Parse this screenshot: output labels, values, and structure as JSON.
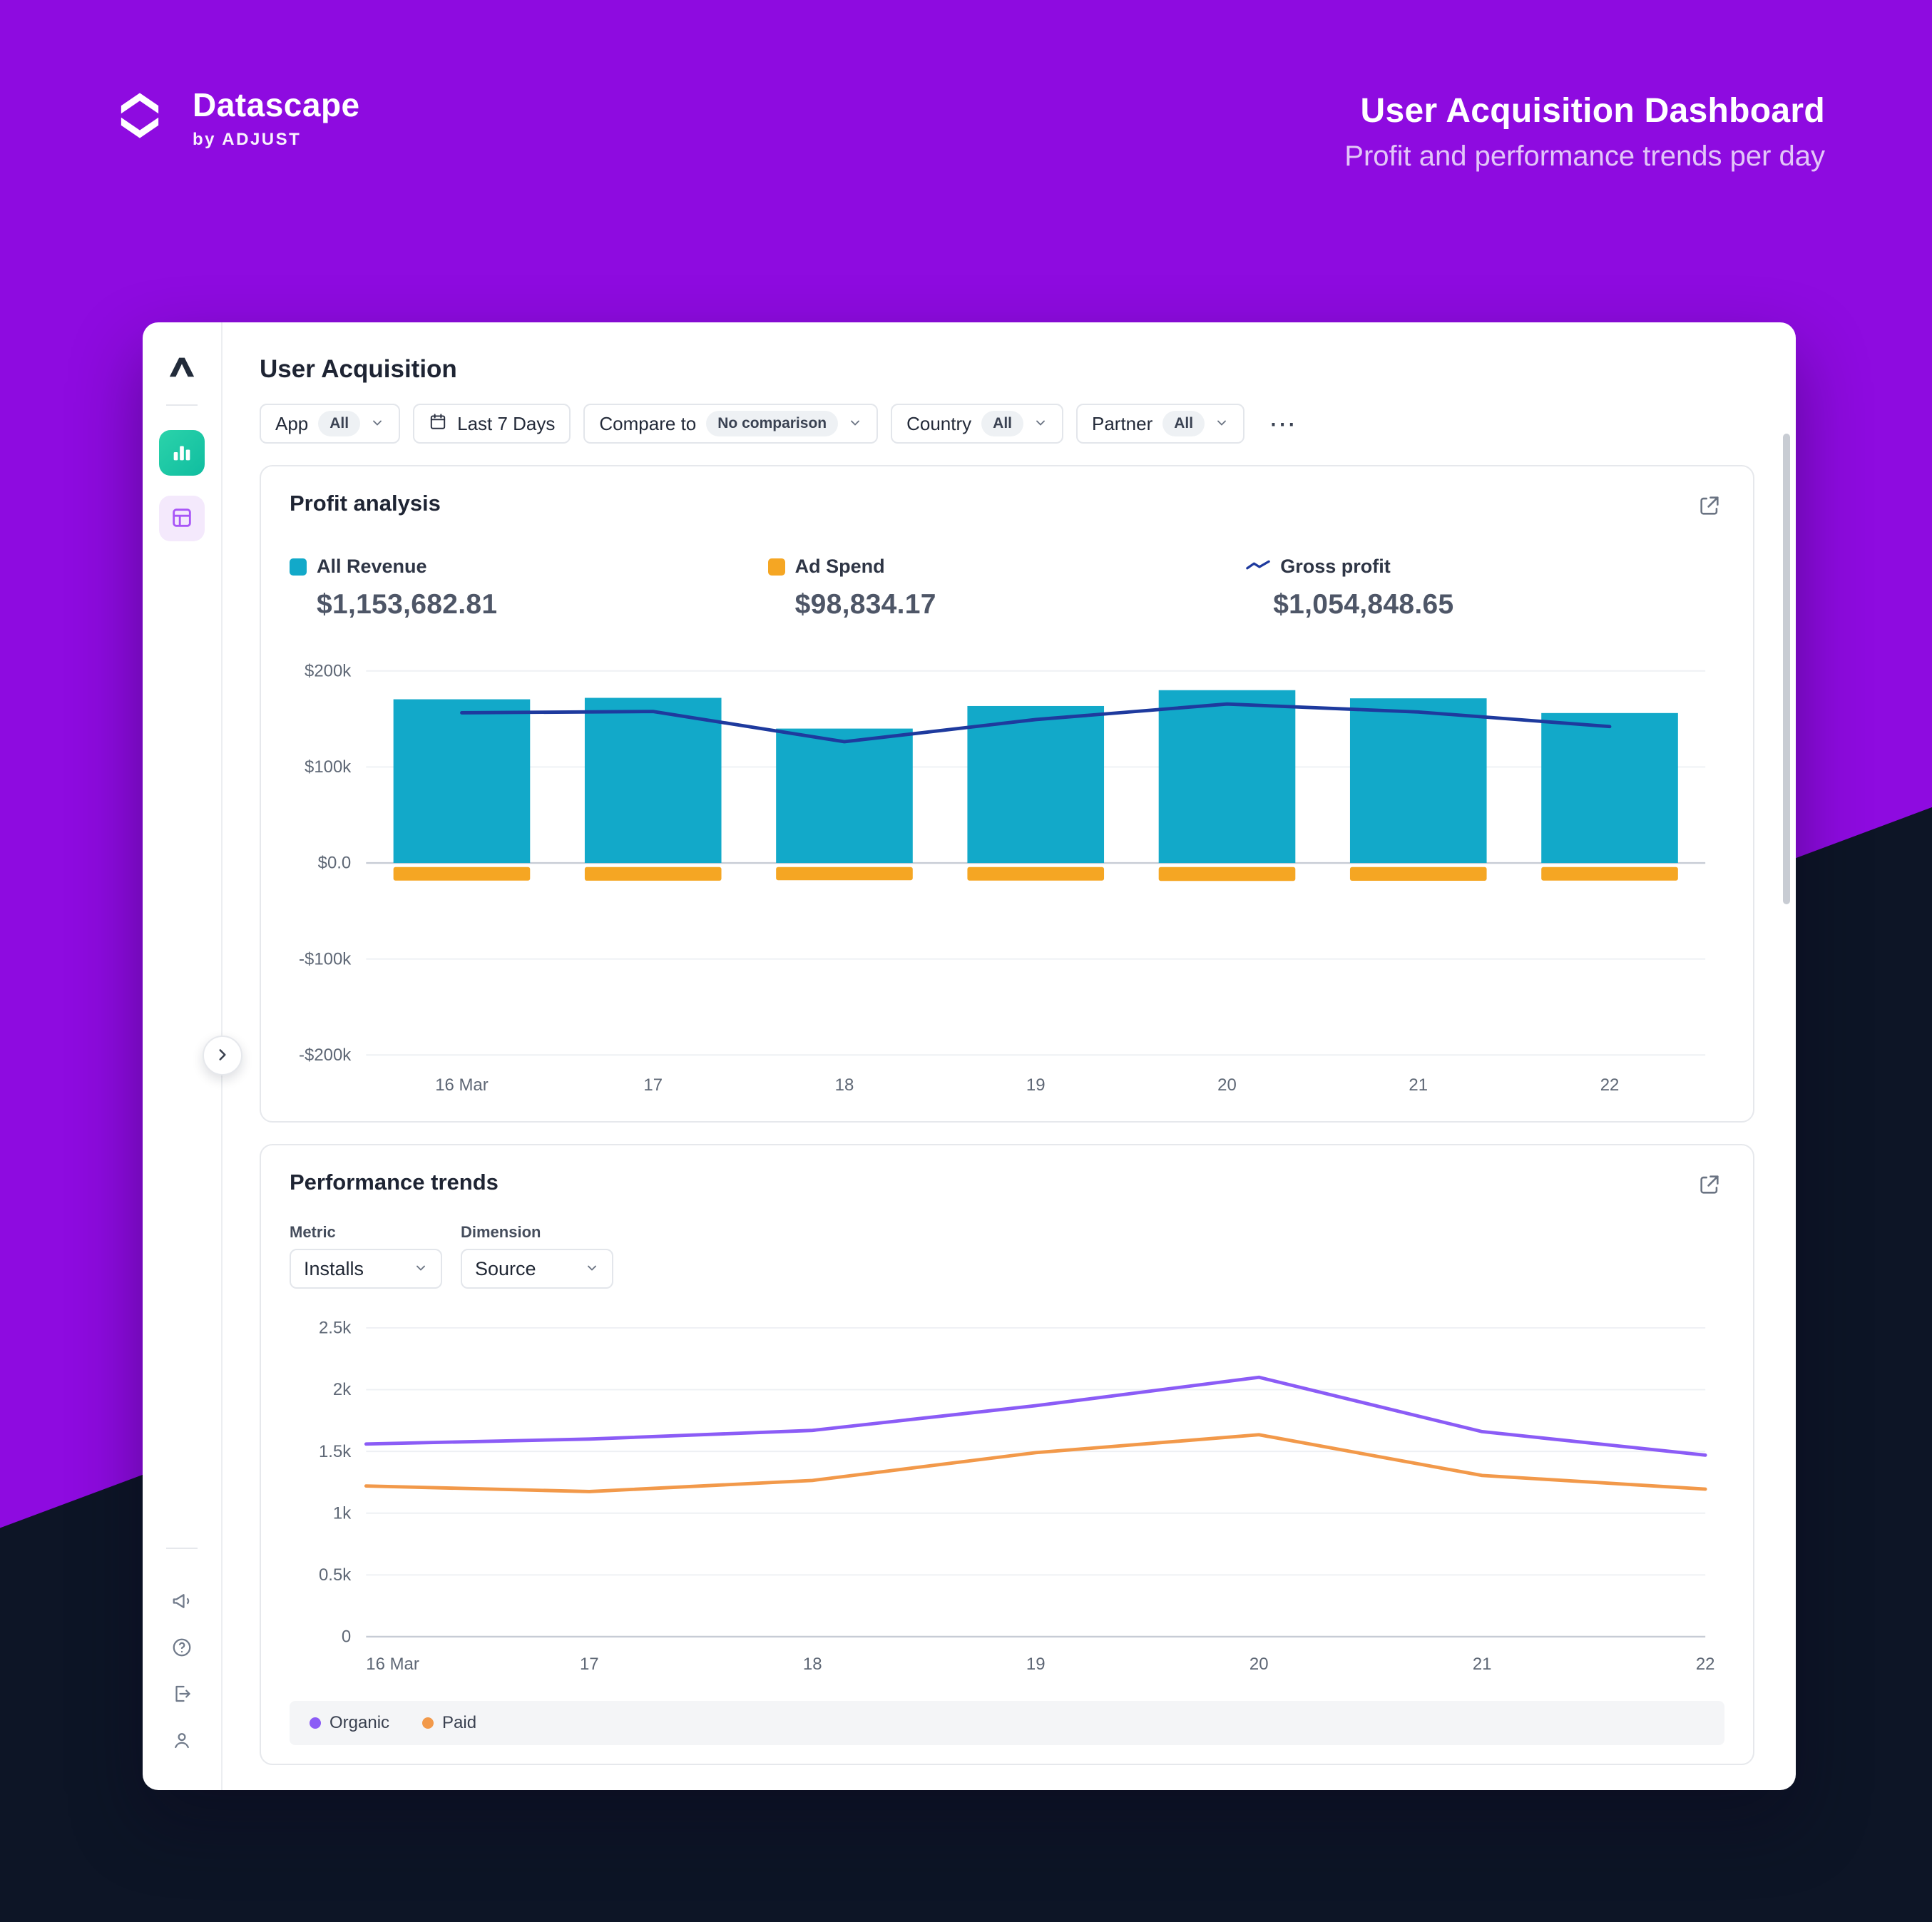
{
  "header": {
    "brand_name": "Datascape",
    "brand_byline": "by ADJUST",
    "title": "User Acquisition Dashboard",
    "subtitle": "Profit and performance trends per day"
  },
  "main": {
    "title": "User Acquisition",
    "filters": {
      "app": {
        "label": "App",
        "value": "All"
      },
      "date": {
        "label": "Last 7 Days"
      },
      "compare": {
        "label": "Compare to",
        "value": "No comparison"
      },
      "country": {
        "label": "Country",
        "value": "All"
      },
      "partner": {
        "label": "Partner",
        "value": "All"
      },
      "more": "⋯"
    }
  },
  "profit_card": {
    "title": "Profit analysis",
    "stats": [
      {
        "label": "All Revenue",
        "value": "$1,153,682.81",
        "color": "#12A9C9"
      },
      {
        "label": "Ad Spend",
        "value": "$98,834.17",
        "color": "#F5A623"
      },
      {
        "label": "Gross profit",
        "value": "$1,054,848.65",
        "color": "#1E3A9E"
      }
    ]
  },
  "trends_card": {
    "title": "Performance trends",
    "metric": {
      "label": "Metric",
      "value": "Installs"
    },
    "dimension": {
      "label": "Dimension",
      "value": "Source"
    },
    "legend": [
      {
        "label": "Organic",
        "color": "#8B5CF6"
      },
      {
        "label": "Paid",
        "color": "#F2994A"
      }
    ]
  },
  "icons": {
    "datascape-logo": "angular-s-mark",
    "adjust-logo": "mountain-a-mark",
    "nav-analytics": "bar-chart",
    "nav-reports": "table-grid",
    "collapse": "chevron-right",
    "calendar": "calendar",
    "chevron": "chevron-down",
    "export": "open-in-new",
    "announcements": "megaphone",
    "help": "question-circle",
    "logout": "sign-out",
    "profile": "person"
  },
  "chart_data": [
    {
      "type": "bar",
      "title": "Profit analysis",
      "categories": [
        "16 Mar",
        "17",
        "18",
        "19",
        "20",
        "21",
        "22"
      ],
      "series": [
        {
          "name": "All Revenue",
          "type": "bar",
          "color": "#12A9C9",
          "values": [
            170500,
            172000,
            140000,
            163500,
            180000,
            171500,
            156182.81
          ]
        },
        {
          "name": "Ad Spend",
          "type": "bar",
          "direction": "below-axis",
          "color": "#F5A623",
          "values": [
            14050,
            14200,
            13700,
            14100,
            14450,
            14250,
            14084.17
          ]
        },
        {
          "name": "Gross profit",
          "type": "line",
          "color": "#1E3A9E",
          "values": [
            156450,
            157800,
            126300,
            149400,
            165550,
            157250,
            142098.64
          ]
        }
      ],
      "ylim": [
        -200000,
        200000
      ],
      "yticks": [
        {
          "v": 200000,
          "label": "$200k"
        },
        {
          "v": 100000,
          "label": "$100k"
        },
        {
          "v": 0,
          "label": "$0.0"
        },
        {
          "v": -100000,
          "label": "-$100k"
        },
        {
          "v": -200000,
          "label": "-$200k"
        }
      ],
      "grid": true,
      "legend_position": "top"
    },
    {
      "type": "line",
      "title": "Performance trends (Installs by Source)",
      "categories": [
        "16 Mar",
        "17",
        "18",
        "19",
        "20",
        "21",
        "22"
      ],
      "series": [
        {
          "name": "Organic",
          "color": "#8B5CF6",
          "values": [
            1560,
            1600,
            1670,
            1870,
            2100,
            1660,
            1470
          ]
        },
        {
          "name": "Paid",
          "color": "#F2994A",
          "values": [
            1220,
            1175,
            1265,
            1490,
            1635,
            1305,
            1195
          ]
        }
      ],
      "ylim": [
        0,
        2500
      ],
      "yticks": [
        {
          "v": 2500,
          "label": "2.5k"
        },
        {
          "v": 2000,
          "label": "2k"
        },
        {
          "v": 1500,
          "label": "1.5k"
        },
        {
          "v": 1000,
          "label": "1k"
        },
        {
          "v": 500,
          "label": "0.5k"
        },
        {
          "v": 0,
          "label": "0"
        }
      ],
      "grid": true,
      "legend_position": "bottom"
    }
  ]
}
